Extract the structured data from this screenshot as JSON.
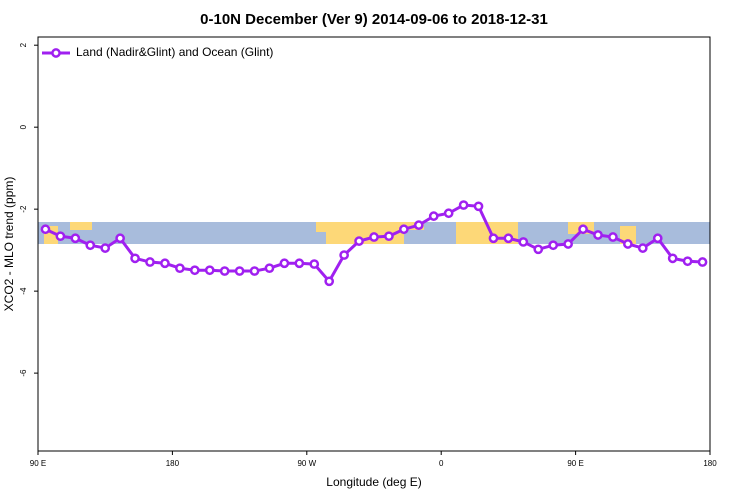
{
  "chart_data": {
    "type": "line",
    "title": "0-10N December (Ver 9)   2014-09-06 to 2018-12-31",
    "xlabel": "Longitude (deg E)",
    "ylabel": "XCO2 - MLO trend (ppm)",
    "x": [
      95,
      105,
      115,
      125,
      135,
      145,
      155,
      165,
      175,
      185,
      195,
      205,
      215,
      225,
      235,
      245,
      255,
      265,
      275,
      285,
      295,
      305,
      315,
      325,
      335,
      345,
      355,
      365,
      375,
      385,
      395,
      405,
      415,
      425,
      435,
      445,
      455,
      465,
      475,
      485,
      495,
      505,
      515,
      525,
      535
    ],
    "series": [
      {
        "name": "Land (Nadir&Glint) and Ocean (Glint)",
        "color": "#a020f0",
        "values": [
          -2.49,
          -2.66,
          -2.71,
          -2.88,
          -2.95,
          -2.71,
          -3.2,
          -3.29,
          -3.32,
          -3.44,
          -3.49,
          -3.49,
          -3.51,
          -3.51,
          -3.51,
          -3.44,
          -3.32,
          -3.32,
          -3.34,
          -3.76,
          -3.12,
          -2.78,
          -2.68,
          -2.66,
          -2.49,
          -2.39,
          -2.17,
          -2.1,
          -1.9,
          -1.93,
          -2.71,
          -2.71,
          -2.8,
          -2.98,
          -2.88,
          -2.85,
          -2.49,
          -2.63,
          -2.68,
          -2.85,
          -2.95,
          -2.71,
          -3.2,
          -3.27,
          -3.29
        ]
      }
    ],
    "xlim": [
      90,
      540
    ],
    "xticks": [
      {
        "value": 90,
        "label": "90 E"
      },
      180,
      {
        "value": 270,
        "label": "90 W"
      },
      {
        "value": 360,
        "label": "0"
      },
      {
        "value": 450,
        "label": "90 E"
      },
      {
        "value": 540,
        "label": "180"
      }
    ],
    "ylim": [
      -7.9,
      2.2
    ],
    "yticks": [
      2,
      0,
      -2,
      -4,
      -6
    ],
    "legend": "top-left"
  }
}
